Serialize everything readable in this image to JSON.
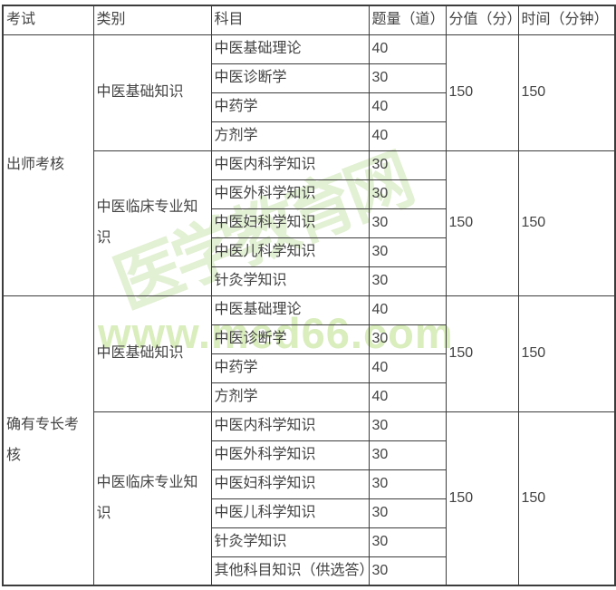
{
  "table": {
    "headers": [
      "考试",
      "类别",
      "科目",
      "题量（道）",
      "分值（分）",
      "时间（分钟）"
    ],
    "exams": [
      {
        "name": "出师考核",
        "categories": [
          {
            "name": "中医基础知识",
            "score": "150",
            "time": "150",
            "subjects": [
              {
                "subject": "中医基础理论",
                "count": "40"
              },
              {
                "subject": "中医诊断学",
                "count": "30"
              },
              {
                "subject": "中药学",
                "count": "40"
              },
              {
                "subject": "方剂学",
                "count": "40"
              }
            ]
          },
          {
            "name": "中医临床专业知识",
            "score": "150",
            "time": "150",
            "subjects": [
              {
                "subject": "中医内科学知识",
                "count": "30"
              },
              {
                "subject": "中医外科学知识",
                "count": "30"
              },
              {
                "subject": "中医妇科学知识",
                "count": "30"
              },
              {
                "subject": "中医儿科学知识",
                "count": "30"
              },
              {
                "subject": "针灸学知识",
                "count": "30"
              }
            ]
          }
        ]
      },
      {
        "name": "确有专长考核",
        "categories": [
          {
            "name": "中医基础知识",
            "score": "150",
            "time": "150",
            "subjects": [
              {
                "subject": "中医基础理论",
                "count": "40"
              },
              {
                "subject": "中医诊断学",
                "count": "30"
              },
              {
                "subject": "中药学",
                "count": "40"
              },
              {
                "subject": "方剂学",
                "count": "40"
              }
            ]
          },
          {
            "name": "中医临床专业知识",
            "score": "150",
            "time": "150",
            "subjects": [
              {
                "subject": "中医内科学知识",
                "count": "30"
              },
              {
                "subject": "中医外科学知识",
                "count": "30"
              },
              {
                "subject": "中医妇科学知识",
                "count": "30"
              },
              {
                "subject": "中医儿科学知识",
                "count": "30"
              },
              {
                "subject": "针灸学知识",
                "count": "30"
              },
              {
                "subject": "其他科目知识（供选答）",
                "count": "30"
              }
            ]
          }
        ]
      }
    ]
  },
  "watermarks": {
    "diagonal": "医学教育网",
    "horizontal": "www.med66.com"
  },
  "colors": {
    "border": "#3c3c3c",
    "text": "#434343",
    "watermark_green": "#dcedc4"
  }
}
